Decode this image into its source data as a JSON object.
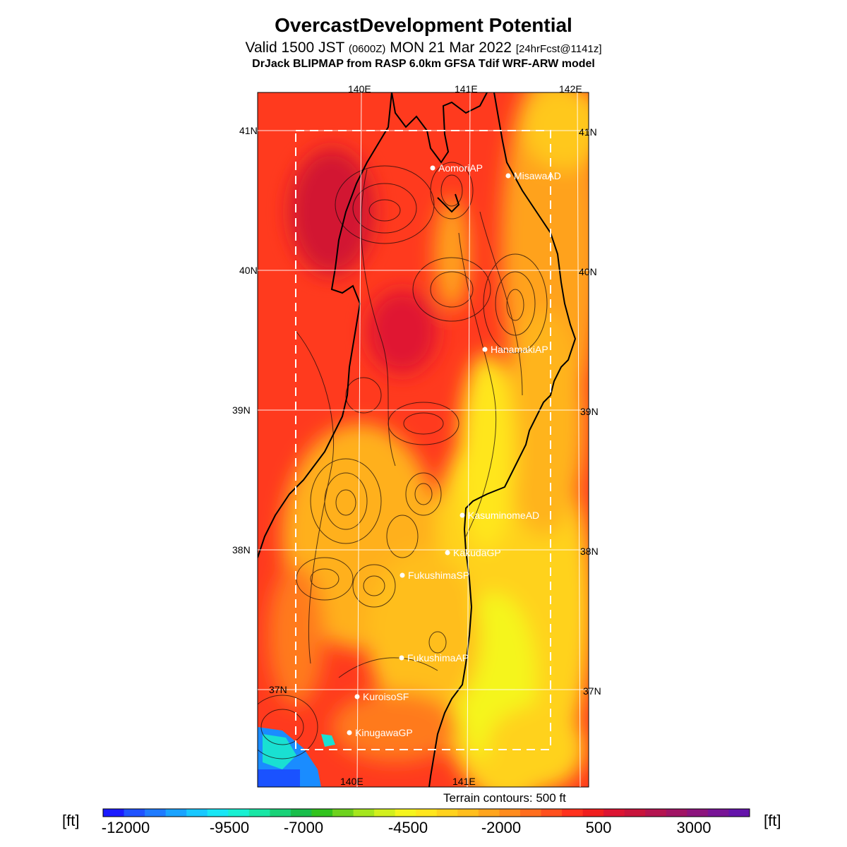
{
  "title": "OvercastDevelopment Potential",
  "subtitle": {
    "valid_pre": "Valid 1500 JST",
    "zulu": "(0600Z)",
    "date": "MON 21 Mar 2022",
    "forecast": "[24hrFcst@1141z]"
  },
  "source": "DrJack BLIPMAP from RASP 6.0km GFSA Tdif WRF-ARW model",
  "map": {
    "lon_labels_top": [
      "140E",
      "141E",
      "142E"
    ],
    "lon_labels_bottom": [
      "140E",
      "141E"
    ],
    "lat_labels": [
      "41N",
      "40N",
      "39N",
      "38N",
      "37N"
    ],
    "stations": [
      {
        "name": "AomoriAP"
      },
      {
        "name": "MisawaAD"
      },
      {
        "name": "HanamakiAP"
      },
      {
        "name": "KasuminomeAD"
      },
      {
        "name": "KakudaGP"
      },
      {
        "name": "FukushimaSP"
      },
      {
        "name": "FukushimaAP"
      },
      {
        "name": "KuroisoSF"
      },
      {
        "name": "KinugawaGP"
      }
    ]
  },
  "terrain_note": "Terrain contours: 500 ft",
  "colorbar": {
    "unit": "[ft]",
    "tick_labels": [
      "-12000",
      "-9500",
      "-7000",
      "-4500",
      "-2000",
      "500",
      "3000"
    ],
    "colors": [
      "#1a1aff",
      "#1f52ff",
      "#1f7bff",
      "#1aa3ff",
      "#19c8ff",
      "#19e6f5",
      "#19f0d2",
      "#19e6a5",
      "#19d278",
      "#19be4b",
      "#32c31e",
      "#6ed21e",
      "#a5e61e",
      "#d2f01e",
      "#f5f51e",
      "#ffe61e",
      "#ffd21e",
      "#ffbe1e",
      "#ffa51e",
      "#ff8c1e",
      "#ff6e1e",
      "#ff501e",
      "#ff321e",
      "#f01e1e",
      "#dc1432",
      "#c8143c",
      "#b41450",
      "#a01464",
      "#8c147d",
      "#781496",
      "#6414aa"
    ]
  }
}
